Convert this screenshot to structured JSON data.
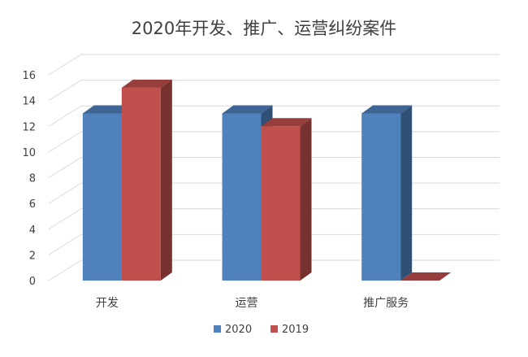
{
  "chart_data": {
    "type": "bar",
    "title": "2020年开发、推广、运营纠纷案件",
    "xlabel": "",
    "ylabel": "",
    "categories": [
      "开发",
      "运营",
      "推广服务"
    ],
    "series": [
      {
        "name": "2020",
        "values": [
          13,
          13,
          13
        ],
        "color": "#4f81bd"
      },
      {
        "name": "2019",
        "values": [
          15,
          12,
          0
        ],
        "color": "#c0504d"
      }
    ],
    "ylim": [
      0,
      16
    ],
    "yticks": [
      0,
      2,
      4,
      6,
      8,
      10,
      12,
      14,
      16
    ],
    "grid": true,
    "legend_position": "bottom",
    "style": "3d-clustered-column"
  }
}
